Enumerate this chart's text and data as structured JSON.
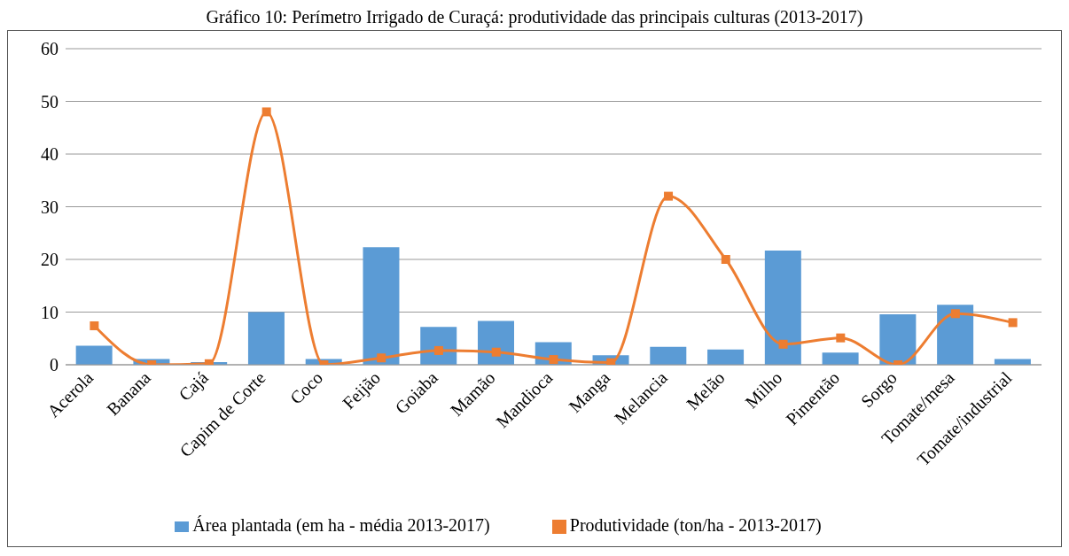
{
  "chart_data": {
    "type": "bar",
    "title": "Gráfico 10: Perímetro Irrigado de Curaçá: produtividade das principais culturas (2013-2017)",
    "categories": [
      "Acerola",
      "Banana",
      "Cajá",
      "Capim de Corte",
      "Coco",
      "Feijão",
      "Goiaba",
      "Mamão",
      "Mandioca",
      "Manga",
      "Melancia",
      "Melão",
      "Milho",
      "Pimentão",
      "Sorgo",
      "Tomate/mesa",
      "Tomate/industrial"
    ],
    "series": [
      {
        "name": "Área plantada (em ha - média 2013-2017)",
        "color": "#5b9bd5",
        "values": [
          3.6,
          1.1,
          0.5,
          10,
          1.1,
          22.3,
          7.2,
          8.3,
          4.3,
          1.8,
          3.4,
          2.9,
          21.7,
          2.3,
          9.6,
          11.4,
          1.1
        ]
      },
      {
        "name": "Produtividade (ton/ha - 2013-2017)",
        "type": "line",
        "color": "#ed7d31",
        "marker": "square",
        "values": [
          7.4,
          0,
          0.2,
          48,
          0,
          1.3,
          2.7,
          2.4,
          1.0,
          0.4,
          32,
          20,
          3.9,
          5.1,
          0,
          9.7,
          8.0
        ]
      }
    ],
    "ylim": [
      0,
      60
    ],
    "yticks": [
      0,
      10,
      20,
      30,
      40,
      50,
      60
    ],
    "grid": "y",
    "legend": "bottom"
  }
}
